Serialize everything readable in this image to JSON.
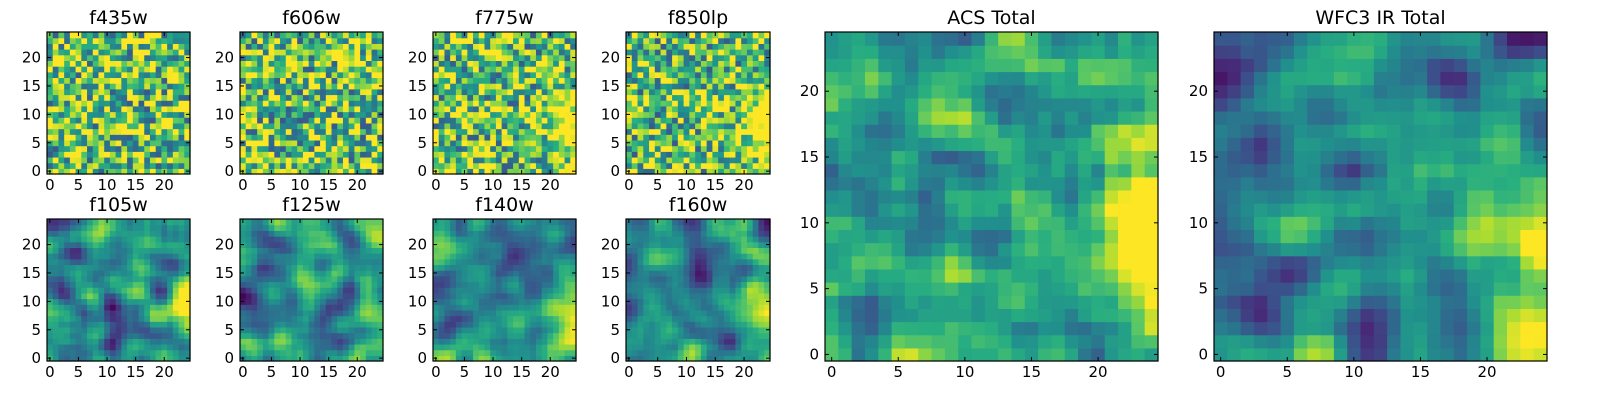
{
  "chart_data": [
    {
      "type": "heatmap",
      "title": "f435w",
      "xlim": [
        0,
        24
      ],
      "ylim": [
        0,
        24
      ],
      "xticks": [
        0,
        5,
        10,
        15,
        20
      ],
      "yticks": [
        0,
        5,
        10,
        15,
        20
      ],
      "grid": false,
      "colormap": "viridis",
      "texture": "noisy",
      "gradient": "none"
    },
    {
      "type": "heatmap",
      "title": "f606w",
      "xlim": [
        0,
        24
      ],
      "ylim": [
        0,
        24
      ],
      "xticks": [
        0,
        5,
        10,
        15,
        20
      ],
      "yticks": [
        0,
        5,
        10,
        15,
        20
      ],
      "grid": false,
      "colormap": "viridis",
      "texture": "noisy",
      "gradient": "none"
    },
    {
      "type": "heatmap",
      "title": "f775w",
      "xlim": [
        0,
        24
      ],
      "ylim": [
        0,
        24
      ],
      "xticks": [
        0,
        5,
        10,
        15,
        20
      ],
      "yticks": [
        0,
        5,
        10,
        15,
        20
      ],
      "grid": false,
      "colormap": "viridis",
      "texture": "noisy",
      "gradient": "right"
    },
    {
      "type": "heatmap",
      "title": "f850lp",
      "xlim": [
        0,
        24
      ],
      "ylim": [
        0,
        24
      ],
      "xticks": [
        0,
        5,
        10,
        15,
        20
      ],
      "yticks": [
        0,
        5,
        10,
        15,
        20
      ],
      "grid": false,
      "colormap": "viridis",
      "texture": "noisy",
      "gradient": "right"
    },
    {
      "type": "heatmap",
      "title": "ACS Total",
      "xlim": [
        0,
        24
      ],
      "ylim": [
        0,
        24
      ],
      "xticks": [
        0,
        5,
        10,
        15,
        20
      ],
      "yticks": [
        0,
        5,
        10,
        15,
        20
      ],
      "grid": false,
      "colormap": "viridis",
      "texture": "moderate",
      "gradient": "right"
    },
    {
      "type": "heatmap",
      "title": "f105w",
      "xlim": [
        0,
        24
      ],
      "ylim": [
        0,
        24
      ],
      "xticks": [
        0,
        5,
        10,
        15,
        20
      ],
      "yticks": [
        0,
        5,
        10,
        15,
        20
      ],
      "grid": false,
      "colormap": "viridis",
      "texture": "smooth",
      "gradient": "right"
    },
    {
      "type": "heatmap",
      "title": "f125w",
      "xlim": [
        0,
        24
      ],
      "ylim": [
        0,
        24
      ],
      "xticks": [
        0,
        5,
        10,
        15,
        20
      ],
      "yticks": [
        0,
        5,
        10,
        15,
        20
      ],
      "grid": false,
      "colormap": "viridis",
      "texture": "smooth",
      "gradient": "right"
    },
    {
      "type": "heatmap",
      "title": "f140w",
      "xlim": [
        0,
        24
      ],
      "ylim": [
        0,
        24
      ],
      "xticks": [
        0,
        5,
        10,
        15,
        20
      ],
      "yticks": [
        0,
        5,
        10,
        15,
        20
      ],
      "grid": false,
      "colormap": "viridis",
      "texture": "smooth",
      "gradient": "right"
    },
    {
      "type": "heatmap",
      "title": "f160w",
      "xlim": [
        0,
        24
      ],
      "ylim": [
        0,
        24
      ],
      "xticks": [
        0,
        5,
        10,
        15,
        20
      ],
      "yticks": [
        0,
        5,
        10,
        15,
        20
      ],
      "grid": false,
      "colormap": "viridis",
      "texture": "smooth",
      "gradient": "right"
    },
    {
      "type": "heatmap",
      "title": "WFC3 IR Total",
      "xlim": [
        0,
        24
      ],
      "ylim": [
        0,
        24
      ],
      "xticks": [
        0,
        5,
        10,
        15,
        20
      ],
      "yticks": [
        0,
        5,
        10,
        15,
        20
      ],
      "grid": false,
      "colormap": "viridis",
      "texture": "smooth",
      "gradient": "right"
    }
  ]
}
